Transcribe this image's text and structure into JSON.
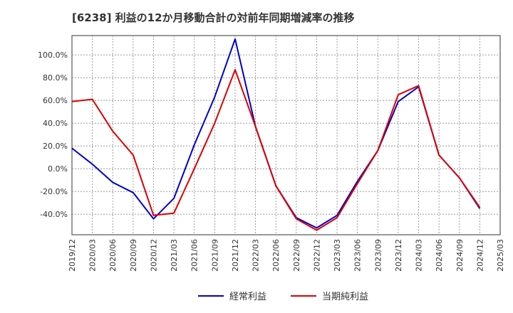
{
  "chart_data": {
    "type": "line",
    "title": "[6238]  利益の12か月移動合計の対前年同期増減率の推移",
    "x": [
      "2019/12",
      "2020/03",
      "2020/06",
      "2020/09",
      "2020/12",
      "2021/03",
      "2021/06",
      "2021/09",
      "2021/12",
      "2022/03",
      "2022/06",
      "2022/09",
      "2022/12",
      "2023/03",
      "2023/06",
      "2023/09",
      "2023/12",
      "2024/03",
      "2024/06",
      "2024/09",
      "2024/12",
      "2025/03"
    ],
    "ylim": [
      -58,
      117
    ],
    "yticks": [
      -40,
      -20,
      0,
      20,
      40,
      60,
      80,
      100
    ],
    "ytick_labels": [
      "-40.0%",
      "-20.0%",
      "0.0%",
      "20.0%",
      "40.0%",
      "60.0%",
      "80.0%",
      "100.0%"
    ],
    "grid": true,
    "legend_position": "bottom-center",
    "series": [
      {
        "name": "経常利益",
        "color": "#0000cc",
        "values": [
          18,
          4,
          -12,
          -21,
          -44,
          -26,
          21,
          63,
          114,
          37,
          -15,
          -43,
          -52,
          -41,
          -11,
          16,
          59,
          72,
          12,
          -8,
          -35,
          null
        ]
      },
      {
        "name": "当期純利益",
        "color": "#dd0000",
        "values": [
          59,
          61,
          33,
          12,
          -41,
          -39,
          0,
          40,
          87,
          37,
          -15,
          -44,
          -54,
          -43,
          -13,
          16,
          65,
          73,
          12,
          -8,
          -34,
          null
        ]
      }
    ]
  }
}
